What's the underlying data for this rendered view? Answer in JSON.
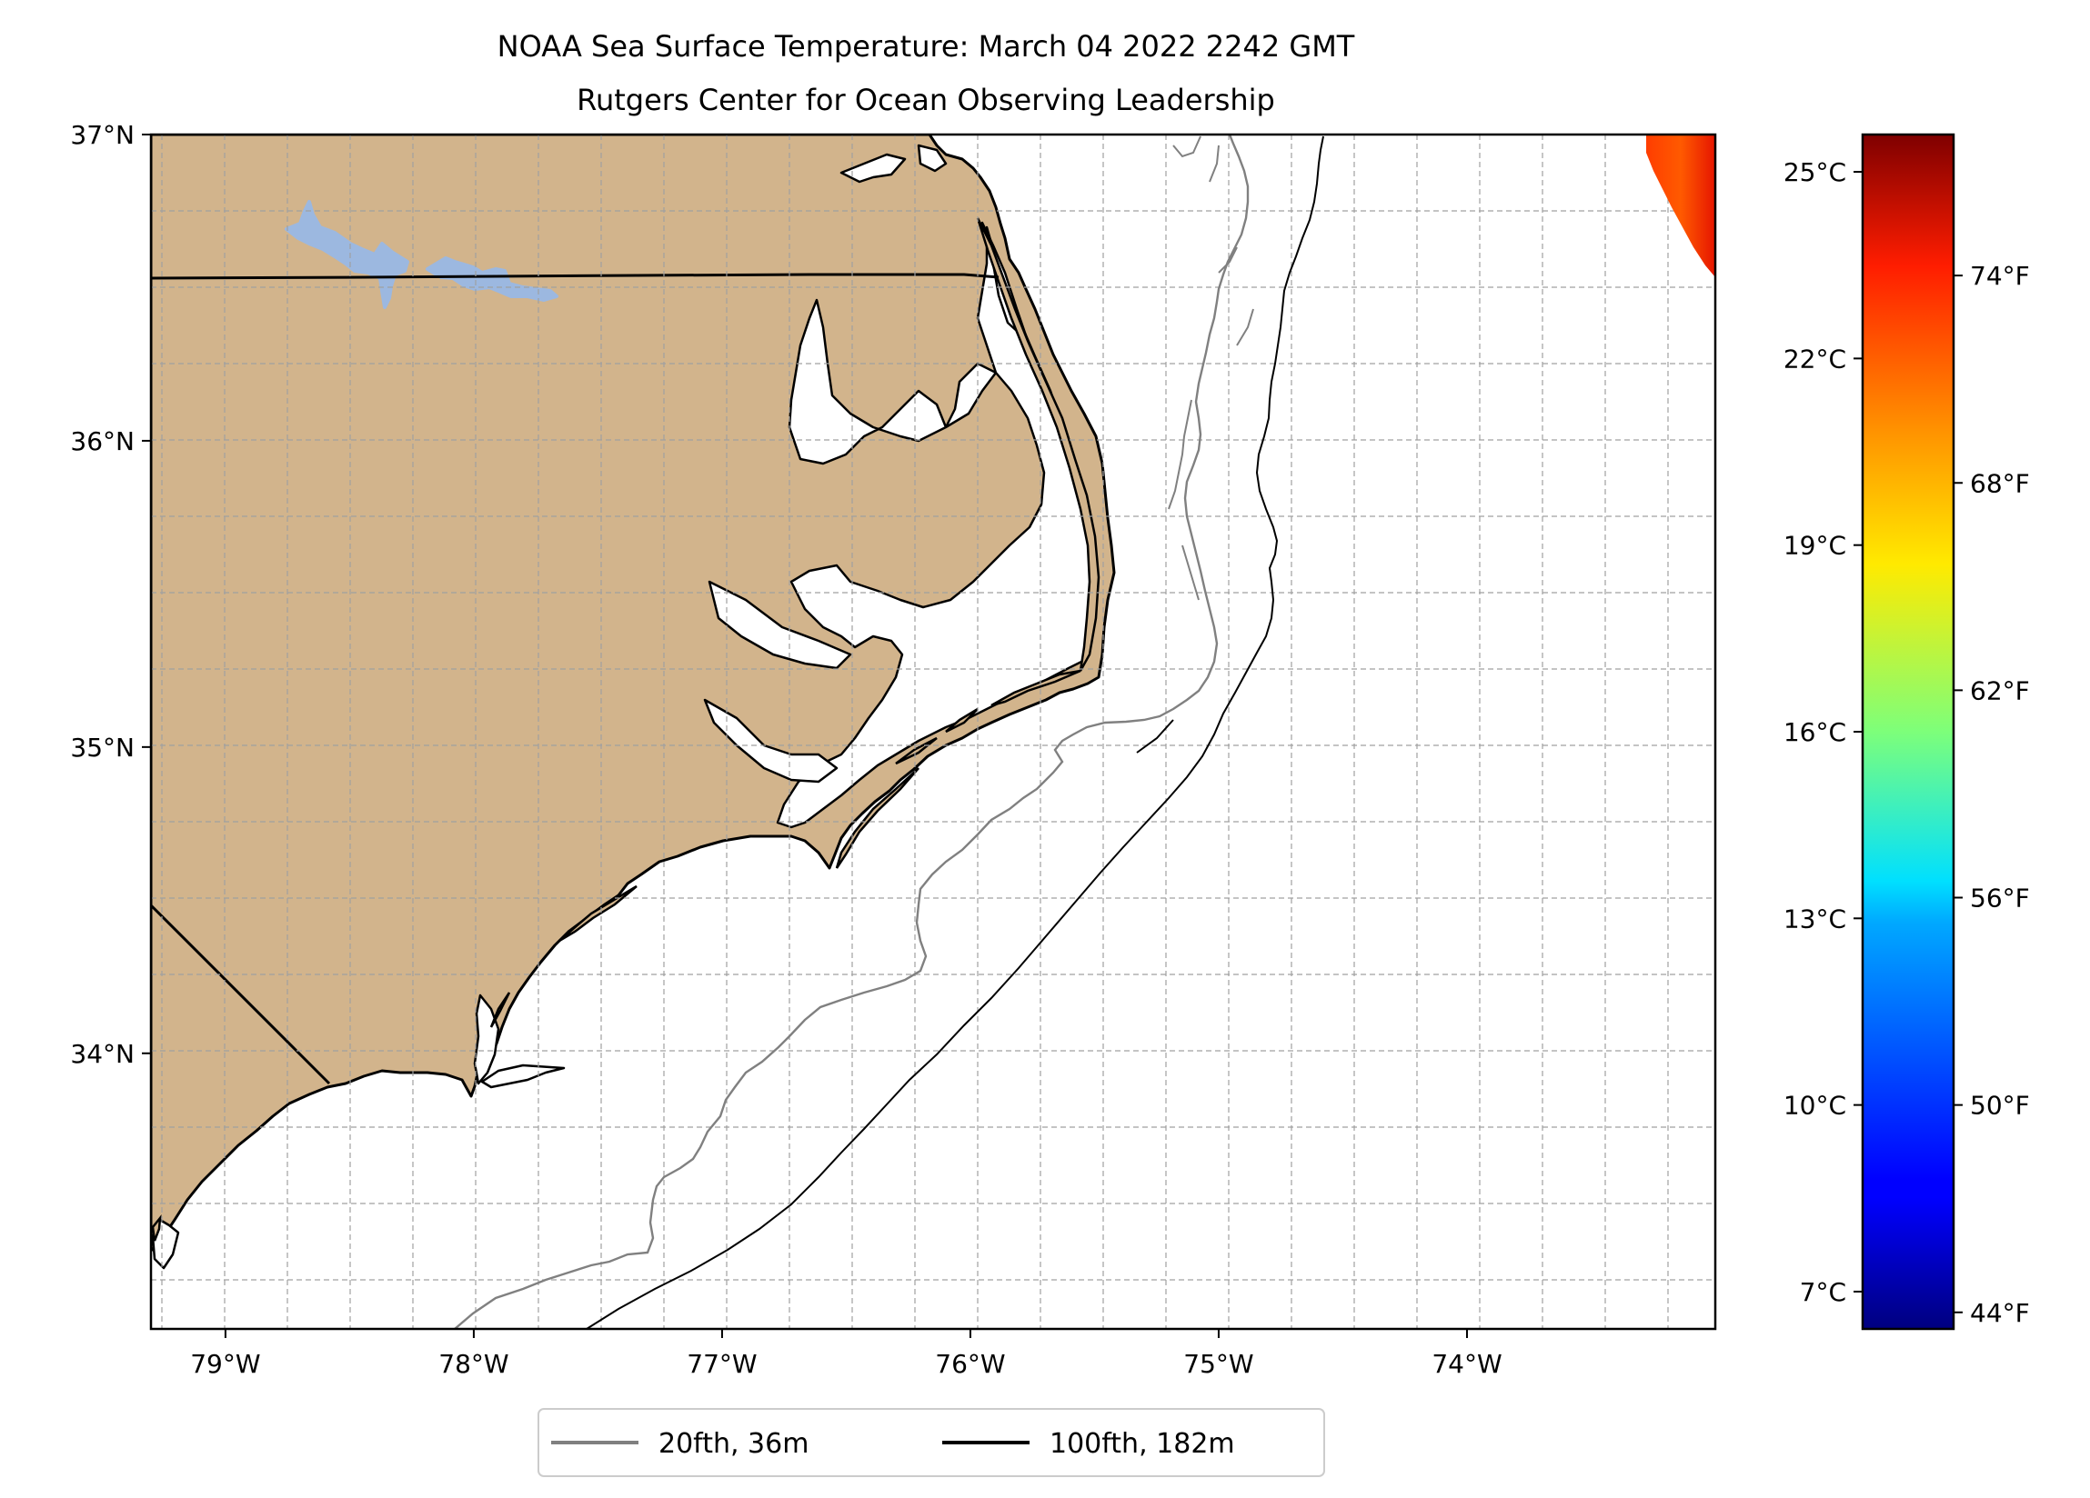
{
  "title": {
    "line1": "NOAA Sea Surface Temperature: March 04 2022 2242 GMT",
    "line2": "Rutgers Center for Ocean Observing Leadership"
  },
  "map": {
    "lon_range": [
      -79.3,
      -73.0
    ],
    "lat_range": [
      33.1,
      37.0
    ],
    "lon_ticks": [
      {
        "value": -79,
        "label": "79°W"
      },
      {
        "value": -78,
        "label": "78°W"
      },
      {
        "value": -77,
        "label": "77°W"
      },
      {
        "value": -76,
        "label": "76°W"
      },
      {
        "value": -75,
        "label": "75°W"
      },
      {
        "value": -74,
        "label": "74°W"
      }
    ],
    "lat_ticks": [
      {
        "value": 37,
        "label": "37°N"
      },
      {
        "value": 36,
        "label": "36°N"
      },
      {
        "value": 35,
        "label": "35°N"
      },
      {
        "value": 34,
        "label": "34°N"
      }
    ],
    "grid": true,
    "land_color": "#d2b48c",
    "lake_color": "#9cb8e0",
    "ocean_color": "#ffffff"
  },
  "colorbar": {
    "colormap": "jet",
    "celsius_ticks": [
      {
        "value": 25,
        "label": "25°C"
      },
      {
        "value": 22,
        "label": "22°C"
      },
      {
        "value": 19,
        "label": "19°C"
      },
      {
        "value": 16,
        "label": "16°C"
      },
      {
        "value": 13,
        "label": "13°C"
      },
      {
        "value": 10,
        "label": "10°C"
      },
      {
        "value": 7,
        "label": "7°C"
      }
    ],
    "fahrenheit_ticks": [
      {
        "value": 74,
        "label": "74°F"
      },
      {
        "value": 68,
        "label": "68°F"
      },
      {
        "value": 62,
        "label": "62°F"
      },
      {
        "value": 56,
        "label": "56°F"
      },
      {
        "value": 50,
        "label": "50°F"
      },
      {
        "value": 44,
        "label": "44°F"
      }
    ],
    "range_celsius": [
      6.4,
      25.6
    ]
  },
  "legend": {
    "items": [
      {
        "label": "20fth, 36m",
        "color": "#808080"
      },
      {
        "label": "100fth, 182m",
        "color": "#000000"
      }
    ]
  }
}
